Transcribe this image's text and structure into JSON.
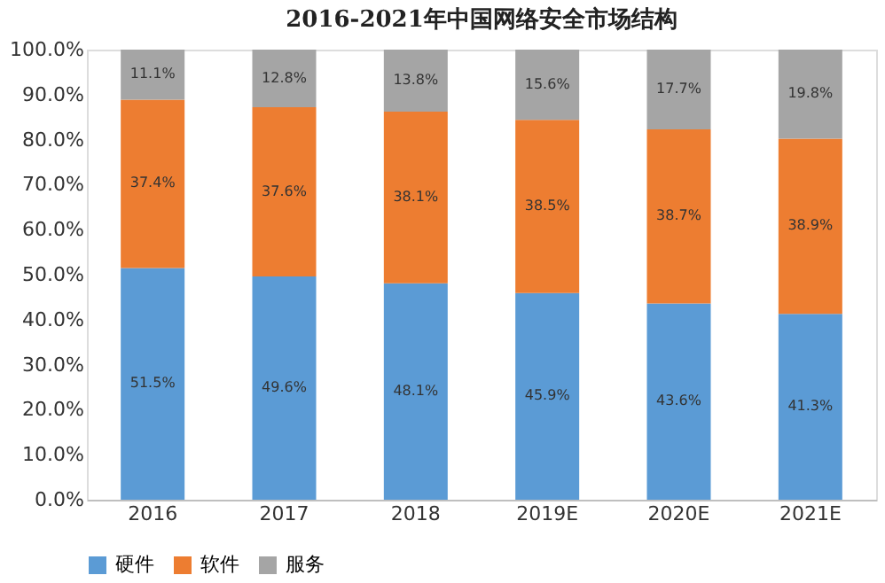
{
  "chart_data": {
    "type": "bar",
    "title": "2016-2021年中国网络安全市场结构",
    "stacked": true,
    "categories": [
      "2016",
      "2017",
      "2018",
      "2019E",
      "2020E",
      "2021E"
    ],
    "series": [
      {
        "name": "硬件",
        "color": "#5b9bd5",
        "values": [
          51.5,
          49.6,
          48.1,
          45.9,
          43.6,
          41.3
        ],
        "value_labels": [
          "51.5%",
          "49.6%",
          "48.1%",
          "45.9%",
          "43.6%",
          "41.3%"
        ]
      },
      {
        "name": "软件",
        "color": "#ed7d31",
        "values": [
          37.4,
          37.6,
          38.1,
          38.5,
          38.7,
          38.9
        ],
        "value_labels": [
          "37.4%",
          "37.6%",
          "38.1%",
          "38.5%",
          "38.7%",
          "38.9%"
        ]
      },
      {
        "name": "服务",
        "color": "#a5a5a5",
        "values": [
          11.1,
          12.8,
          13.8,
          15.6,
          17.7,
          19.8
        ],
        "value_labels": [
          "11.1%",
          "12.8%",
          "13.8%",
          "15.6%",
          "17.7%",
          "19.8%"
        ]
      }
    ],
    "ylim": [
      0,
      100
    ],
    "yticks": [
      {
        "value": 0,
        "label": "0.0%"
      },
      {
        "value": 10,
        "label": "10.0%"
      },
      {
        "value": 20,
        "label": "20.0%"
      },
      {
        "value": 30,
        "label": "30.0%"
      },
      {
        "value": 40,
        "label": "40.0%"
      },
      {
        "value": 50,
        "label": "50.0%"
      },
      {
        "value": 60,
        "label": "60.0%"
      },
      {
        "value": 70,
        "label": "70.0%"
      },
      {
        "value": 80,
        "label": "80.0%"
      },
      {
        "value": 90,
        "label": "90.0%"
      },
      {
        "value": 100,
        "label": "100.0%"
      }
    ],
    "grid": false,
    "legend": "bottom"
  }
}
